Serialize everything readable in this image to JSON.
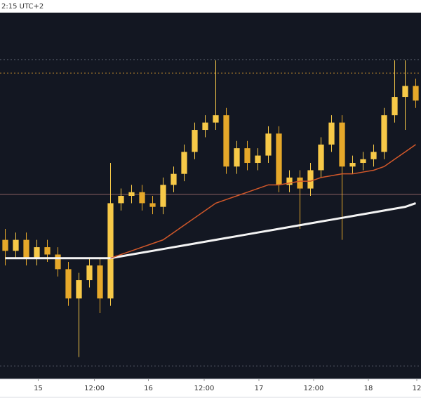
{
  "chart_data": {
    "type": "candlestick",
    "header": "2:15 UTC+2",
    "up_color": "#f7c948",
    "down_color": "#e6a82a",
    "open": [
      38,
      35,
      38,
      33,
      36,
      34,
      30,
      22,
      27,
      31,
      22,
      48,
      50,
      51,
      48,
      47,
      53,
      56,
      62,
      68,
      70,
      72,
      58,
      63,
      59,
      61,
      67,
      53,
      55,
      52,
      57,
      64,
      70,
      58,
      59,
      60,
      62,
      72,
      77,
      80
    ],
    "high": [
      41,
      40,
      40,
      38,
      38,
      36,
      32,
      29,
      33,
      33,
      59,
      52,
      53,
      53,
      50,
      55,
      58,
      64,
      70,
      72,
      87,
      74,
      65,
      65,
      63,
      69,
      69,
      57,
      57,
      59,
      66,
      72,
      72,
      61,
      62,
      64,
      74,
      87,
      87,
      82
    ],
    "low": [
      31,
      33,
      31,
      31,
      32,
      28,
      20,
      6,
      25,
      18,
      20,
      46,
      48,
      46,
      45,
      45,
      51,
      54,
      60,
      66,
      68,
      56,
      56,
      57,
      57,
      59,
      51,
      51,
      41,
      50,
      55,
      62,
      38,
      56,
      57,
      58,
      60,
      70,
      68,
      74
    ],
    "close": [
      35,
      38,
      33,
      36,
      34,
      30,
      22,
      27,
      31,
      22,
      48,
      50,
      51,
      48,
      47,
      53,
      56,
      62,
      68,
      70,
      72,
      58,
      63,
      59,
      61,
      67,
      53,
      55,
      52,
      57,
      64,
      70,
      58,
      59,
      60,
      62,
      72,
      77,
      80,
      76
    ],
    "series": [
      {
        "color": "#f4f4f4",
        "values": [
          33,
          33,
          33,
          33,
          33,
          33,
          33,
          33,
          33,
          33,
          33,
          33.5,
          34,
          34.5,
          35,
          35.5,
          36,
          36.5,
          37,
          37.5,
          38,
          38.5,
          39,
          39.5,
          40,
          40.5,
          41,
          41.5,
          42,
          42.5,
          43,
          43.5,
          44,
          44.5,
          45,
          45.5,
          46,
          46.5,
          47,
          48
        ]
      },
      {
        "color": "#d2582a",
        "values": [
          null,
          null,
          null,
          null,
          null,
          null,
          null,
          null,
          null,
          null,
          33,
          34,
          35,
          36,
          37,
          38,
          40,
          42,
          44,
          46,
          48,
          49,
          50,
          51,
          52,
          53,
          53,
          53.5,
          54,
          54,
          55,
          55.5,
          56,
          56,
          56.5,
          57,
          58,
          60,
          62,
          64
        ]
      }
    ],
    "levels": [
      {
        "value": 87.2,
        "color": "#5a5f6b",
        "dash": true
      },
      {
        "value": 83.5,
        "color": "#b9852c",
        "dash": true
      },
      {
        "value": 50.4,
        "color": "#8c5f63",
        "dash": false
      },
      {
        "value": 3.6,
        "color": "#5a5f6b",
        "dash": true
      }
    ],
    "ylim": [
      0,
      100
    ],
    "xlim": [
      -0.5,
      39.5
    ],
    "xticks": [
      {
        "value": 3.13,
        "label": "15"
      },
      {
        "value": 8.47,
        "label": "12:00"
      },
      {
        "value": 13.6,
        "label": "16"
      },
      {
        "value": 18.9,
        "label": "12:00"
      },
      {
        "value": 24.1,
        "label": "17"
      },
      {
        "value": 29.3,
        "label": "12:00"
      },
      {
        "value": 34.5,
        "label": "18"
      },
      {
        "value": 39.1,
        "label": "12"
      }
    ]
  }
}
